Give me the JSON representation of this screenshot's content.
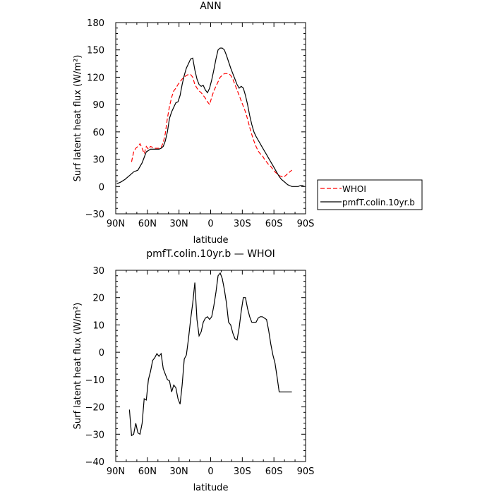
{
  "chart_data": [
    {
      "type": "line",
      "title": "ANN",
      "xlabel": "latitude",
      "ylabel": "Surf latent heat flux (W/m²)",
      "xlim": [
        90,
        -90
      ],
      "ylim": [
        -30,
        180
      ],
      "xticks": [
        90,
        60,
        30,
        0,
        -30,
        -60,
        -90
      ],
      "xtick_labels": [
        "90N",
        "60N",
        "30N",
        "0",
        "30S",
        "60S",
        "90S"
      ],
      "yticks": [
        -30,
        0,
        30,
        60,
        90,
        120,
        150,
        180
      ],
      "ytick_labels": [
        "−30",
        "0",
        "30",
        "60",
        "90",
        "120",
        "150",
        "180"
      ],
      "legend": {
        "placement": "right"
      },
      "series": [
        {
          "name": "WHOI",
          "color": "#ff0000",
          "style": "dashed",
          "x": [
            75,
            73,
            71,
            69,
            67,
            65,
            63,
            61,
            59,
            57,
            55,
            53,
            51,
            49,
            47,
            45,
            43,
            41,
            39,
            37,
            35,
            33,
            31,
            29,
            27,
            25,
            23,
            21,
            19,
            17,
            15,
            13,
            11,
            9,
            7,
            5,
            3,
            1,
            -1,
            -3,
            -5,
            -7,
            -9,
            -11,
            -13,
            -15,
            -17,
            -19,
            -21,
            -23,
            -25,
            -27,
            -29,
            -31,
            -33,
            -35,
            -37,
            -39,
            -41,
            -43,
            -45,
            -47,
            -49,
            -51,
            -53,
            -55,
            -57,
            -59,
            -61,
            -63,
            -65,
            -67,
            -69,
            -71,
            -73,
            -75,
            -77
          ],
          "y": [
            27,
            38,
            42,
            44,
            47,
            42,
            36,
            44,
            41,
            44,
            43,
            42,
            42,
            42,
            43,
            48,
            58,
            75,
            88,
            98,
            105,
            108,
            112,
            115,
            118,
            120,
            122,
            123,
            123,
            120,
            112,
            108,
            105,
            103,
            100,
            97,
            93,
            90,
            98,
            105,
            110,
            115,
            120,
            122,
            124,
            124,
            124,
            122,
            118,
            112,
            106,
            100,
            94,
            88,
            82,
            74,
            65,
            57,
            50,
            44,
            39,
            36,
            34,
            30,
            27,
            24,
            22,
            19,
            16,
            14,
            12,
            11,
            10,
            12,
            14,
            16,
            18
          ]
        },
        {
          "name": "pmfT.colin.10yr.b",
          "color": "#000000",
          "style": "solid",
          "x": [
            89,
            85,
            81,
            77,
            73,
            69,
            65,
            61,
            57,
            55,
            53,
            51,
            49,
            47,
            45,
            43,
            41,
            39,
            37,
            35,
            33,
            31,
            29,
            27,
            25,
            23,
            21,
            19,
            17,
            15,
            13,
            11,
            9,
            7,
            5,
            3,
            1,
            -1,
            -3,
            -5,
            -7,
            -9,
            -11,
            -13,
            -15,
            -17,
            -19,
            -21,
            -23,
            -25,
            -27,
            -29,
            -31,
            -33,
            -35,
            -37,
            -39,
            -41,
            -43,
            -45,
            -47,
            -49,
            -51,
            -53,
            -55,
            -57,
            -59,
            -61,
            -63,
            -65,
            -67,
            -69,
            -71,
            -73,
            -75,
            -77,
            -79,
            -81,
            -83,
            -85,
            -87,
            -89
          ],
          "y": [
            3,
            5,
            8,
            12,
            16,
            18,
            26,
            38,
            41,
            41,
            41,
            41,
            41,
            42,
            44,
            50,
            60,
            75,
            82,
            87,
            92,
            93,
            100,
            112,
            122,
            130,
            135,
            140,
            141,
            128,
            118,
            112,
            110,
            111,
            106,
            103,
            108,
            117,
            128,
            140,
            150,
            152,
            152,
            150,
            144,
            137,
            130,
            124,
            118,
            112,
            108,
            110,
            108,
            100,
            90,
            78,
            68,
            60,
            55,
            51,
            47,
            43,
            39,
            35,
            31,
            27,
            23,
            19,
            15,
            11,
            8,
            6,
            4,
            2,
            1,
            0,
            0,
            0,
            0,
            1,
            1,
            0
          ]
        }
      ]
    },
    {
      "type": "line",
      "title": "pmfT.colin.10yr.b — WHOI",
      "xlabel": "latitude",
      "ylabel": "Surf latent heat flux (W/m²)",
      "xlim": [
        90,
        -90
      ],
      "ylim": [
        -40,
        30
      ],
      "xticks": [
        90,
        60,
        30,
        0,
        -30,
        -60,
        -90
      ],
      "xtick_labels": [
        "90N",
        "60N",
        "30N",
        "0",
        "30S",
        "60S",
        "90S"
      ],
      "yticks": [
        -40,
        -30,
        -20,
        -10,
        0,
        10,
        20,
        30
      ],
      "ytick_labels": [
        "−40",
        "−30",
        "−20",
        "−10",
        "0",
        "10",
        "20",
        "30"
      ],
      "series": [
        {
          "color": "#000000",
          "style": "solid",
          "x": [
            77,
            75,
            73,
            71,
            69,
            67,
            65,
            63,
            61,
            59,
            57,
            55,
            53,
            51,
            49,
            47,
            45,
            43,
            41,
            39,
            37,
            35,
            33,
            31,
            29,
            27,
            25,
            23,
            21,
            19,
            17,
            15,
            13,
            11,
            9,
            7,
            5,
            3,
            1,
            -1,
            -3,
            -5,
            -7,
            -9,
            -11,
            -13,
            -15,
            -17,
            -19,
            -21,
            -23,
            -25,
            -27,
            -29,
            -31,
            -33,
            -35,
            -37,
            -39,
            -41,
            -43,
            -45,
            -47,
            -49,
            -51,
            -53,
            -55,
            -57,
            -59,
            -61,
            -63,
            -65,
            -67,
            -69,
            -71,
            -73,
            -75,
            -77
          ],
          "y": [
            -21,
            -30.5,
            -30,
            -26,
            -29.5,
            -30,
            -26,
            -17,
            -17.5,
            -10,
            -7,
            -3,
            -2,
            -0.5,
            -1.5,
            -0.5,
            -6,
            -8,
            -10,
            -10.5,
            -14.5,
            -12,
            -13,
            -17,
            -19,
            -12,
            -2.5,
            -1,
            5,
            12,
            18,
            25.5,
            12,
            6,
            7.5,
            11,
            12.5,
            13,
            12,
            13,
            17,
            22,
            28,
            29,
            27,
            23,
            18,
            11,
            10,
            7,
            5,
            4.5,
            9,
            15,
            20,
            20,
            16,
            13,
            11,
            11,
            11,
            12.5,
            13,
            13,
            12.5,
            12,
            8,
            3,
            -1,
            -4,
            -9,
            -14.5,
            -14.5,
            -14.5,
            -14.5,
            -14.5,
            -14.5,
            -14.5
          ]
        }
      ]
    }
  ]
}
